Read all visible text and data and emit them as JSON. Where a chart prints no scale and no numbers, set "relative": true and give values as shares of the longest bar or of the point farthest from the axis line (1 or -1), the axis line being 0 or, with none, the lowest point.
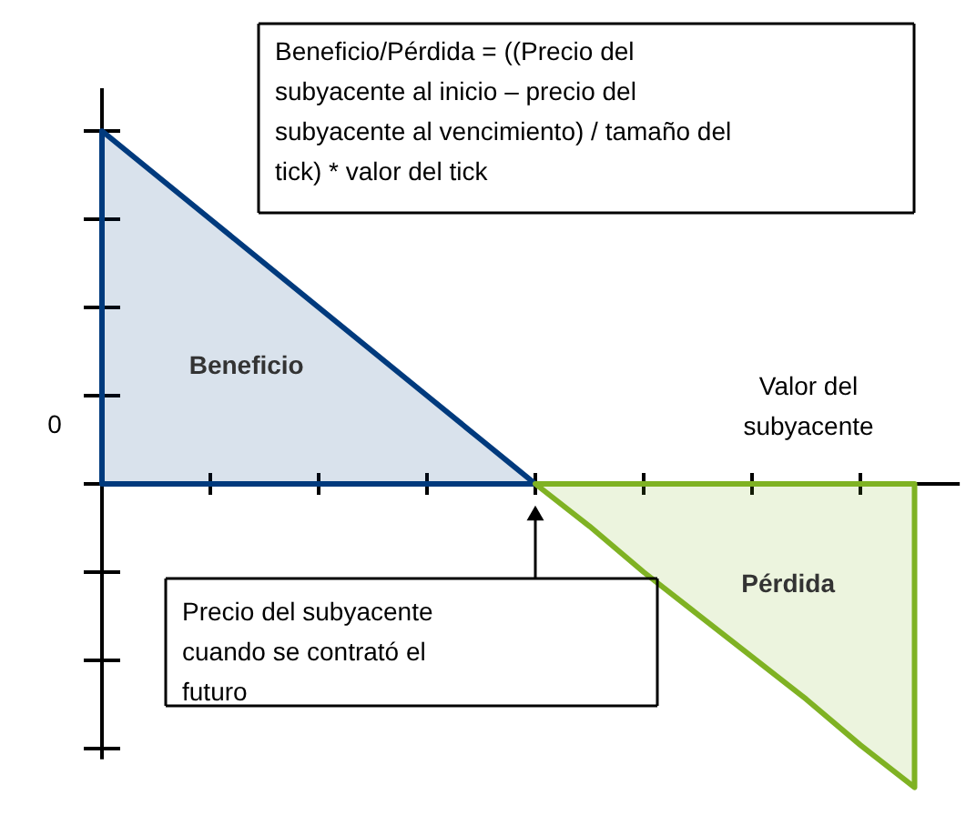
{
  "chart_data": {
    "type": "area",
    "relative": true,
    "xlabel": "Valor del subyacente",
    "categories": [
      null,
      null,
      null,
      null,
      null,
      null,
      null,
      null,
      null,
      null,
      null,
      null,
      null,
      null,
      null,
      null
    ],
    "series": [
      {
        "name": "Beneficio",
        "color": "#003a7d",
        "values": [
          1,
          0.875,
          0.75,
          0.625,
          0.5,
          0.375,
          0.25,
          0.125,
          0,
          null,
          null,
          null,
          null,
          null,
          null,
          null
        ]
      },
      {
        "name": "Pérdida",
        "color": "#7fb223",
        "values": [
          null,
          null,
          null,
          null,
          null,
          null,
          null,
          null,
          0,
          -0.12,
          -0.25,
          -0.37,
          -0.49,
          -0.61,
          -0.74,
          -0.86
        ]
      }
    ],
    "annotations": [
      "Beneficio/Pérdida = ((Precio del subyacente al inicio – precio del subyacente al vencimiento) / tamaño del tick) * valor del tick",
      "Precio del subyacente cuando se contrató el futuro",
      "0"
    ]
  }
}
